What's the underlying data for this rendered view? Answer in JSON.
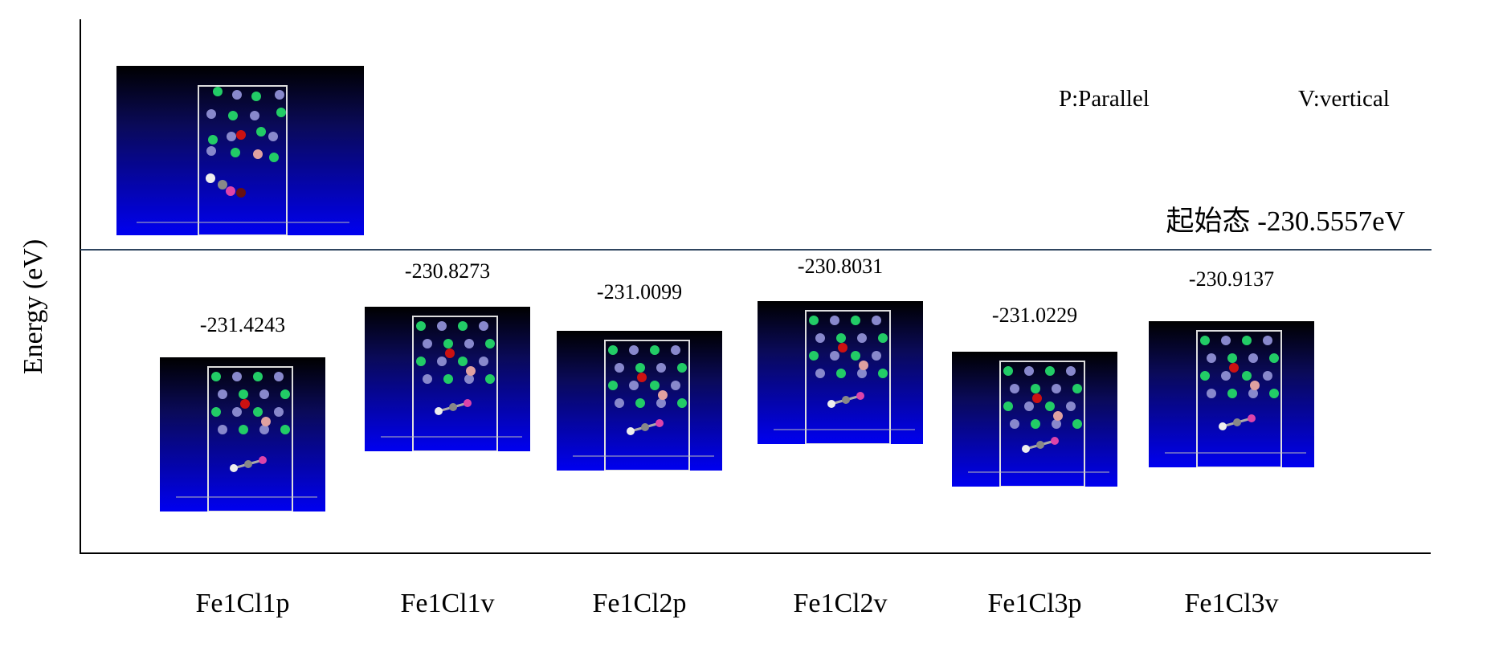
{
  "chart_data": {
    "type": "bar",
    "ylabel": "Energy (eV)",
    "categories": [
      "Fe1Cl1p",
      "Fe1Cl1v",
      "Fe1Cl2p",
      "Fe1Cl2v",
      "Fe1Cl3p",
      "Fe1Cl3v"
    ],
    "values": [
      -231.4243,
      -230.8273,
      -231.0099,
      -230.8031,
      -231.0229,
      -230.9137
    ],
    "value_labels": [
      "-231.4243",
      "-230.8273",
      "-231.0099",
      "-230.8031",
      "-231.0229",
      "-230.9137"
    ],
    "reference": {
      "label": "起始态 -230.5557eV",
      "value": -230.5557
    },
    "legend": [
      "P:Parallel",
      "V:vertical"
    ],
    "grid": false,
    "colors": {
      "reference_line": "#2f4560",
      "axis": "#000000",
      "thumb_top": "#000000",
      "thumb_bottom": "#0000f0"
    }
  }
}
